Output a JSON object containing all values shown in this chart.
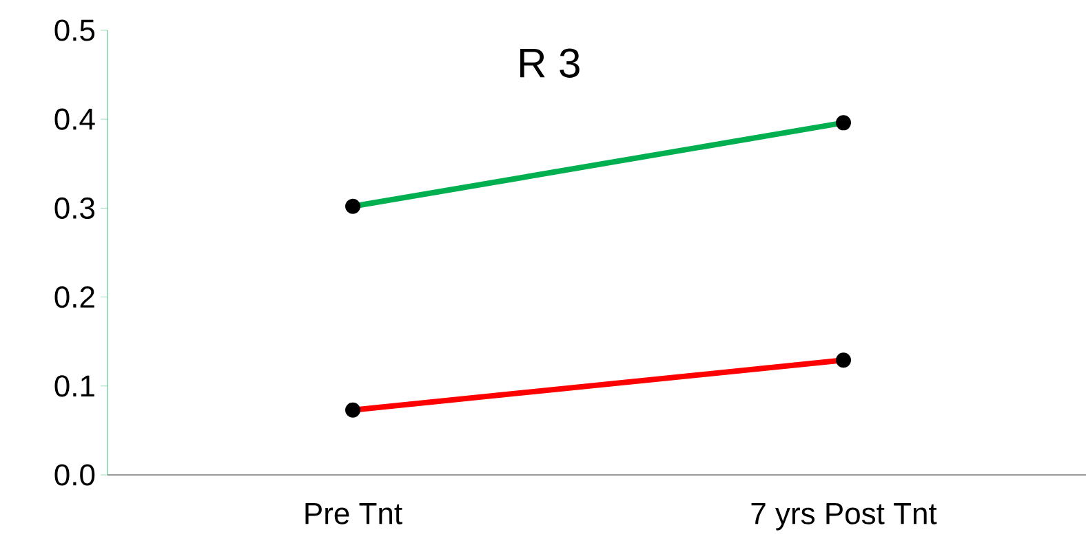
{
  "chart_data": {
    "type": "line",
    "title": "R 3",
    "categories": [
      "Pre Tnt",
      "7 yrs Post Tnt"
    ],
    "series": [
      {
        "color": "#00b050",
        "values": [
          0.302,
          0.396
        ]
      },
      {
        "color": "#ff0000",
        "values": [
          0.073,
          0.129
        ]
      }
    ],
    "ylim": [
      0,
      0.5
    ],
    "yticks": [
      {
        "value": 0,
        "label": "0.0"
      },
      0.1,
      0.2,
      0.3,
      0.4,
      0.5
    ],
    "marker": "circle",
    "grid": false
  }
}
